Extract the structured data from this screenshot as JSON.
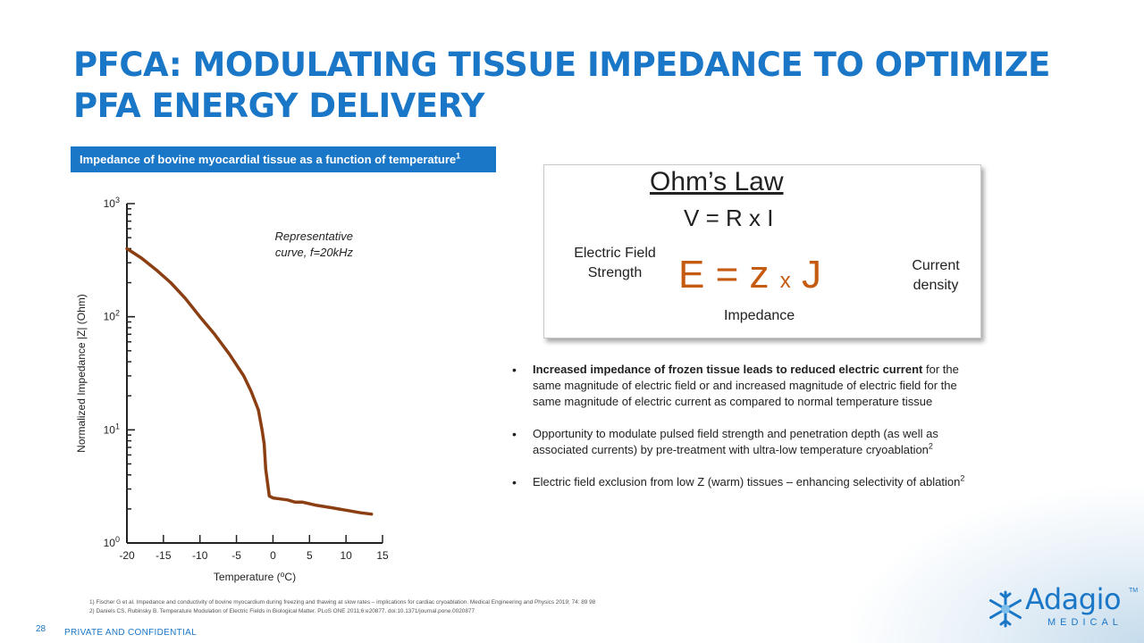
{
  "title": {
    "line1": "PFCA: MODULATING TISSUE IMPEDANCE TO OPTIMIZE",
    "line2": "PFA ENERGY DELIVERY"
  },
  "chart_banner": {
    "text": "Impedance of bovine myocardial tissue as a function of temperature",
    "ref": "1"
  },
  "chart_data": {
    "type": "line",
    "xlabel": "Temperature (⁰C)",
    "ylabel": "Normalized Impedance |Z| (Ohm)",
    "xlim": [
      -20,
      15
    ],
    "ylim": [
      1,
      1000
    ],
    "yscale": "log",
    "x_ticks": [
      "-20",
      "-15",
      "-10",
      "-5",
      "0",
      "5",
      "10",
      "15"
    ],
    "y_ticks": [
      {
        "base": "10",
        "exp": "0",
        "value": 1
      },
      {
        "base": "10",
        "exp": "1",
        "value": 10
      },
      {
        "base": "10",
        "exp": "2",
        "value": 100
      },
      {
        "base": "10",
        "exp": "3",
        "value": 1000
      }
    ],
    "annotation": [
      "Representative",
      "curve, f=20kHz"
    ],
    "color": "#8b3e12",
    "series": [
      {
        "x": [
          -20,
          -18,
          -16,
          -14,
          -12,
          -10,
          -8,
          -6,
          -4,
          -3,
          -2,
          -1.5,
          -1.2,
          -1.0,
          -0.5,
          0,
          1,
          2,
          3,
          4,
          6,
          8,
          10,
          12,
          13.5
        ],
        "y": [
          400,
          330,
          260,
          200,
          145,
          100,
          70,
          47,
          30,
          22,
          15,
          10,
          7.5,
          4.5,
          2.6,
          2.5,
          2.45,
          2.4,
          2.3,
          2.3,
          2.15,
          2.05,
          1.95,
          1.85,
          1.8
        ]
      }
    ]
  },
  "ohms_law": {
    "title": "Ohm’s Law",
    "formula": "V = R x I",
    "left_label": "Electric Field Strength",
    "equation_left": "E = z",
    "equation_x": "x",
    "equation_right": "J",
    "right_label": "Current density",
    "bottom_label": "Impedance"
  },
  "bullets": [
    {
      "bold": "Increased impedance of frozen tissue leads to reduced electric current",
      "text": " for the same magnitude of electric field or and increased magnitude of electric field for the same magnitude of electric current as compared to normal temperature tissue",
      "ref": ""
    },
    {
      "bold": "",
      "text": "Opportunity to modulate pulsed field strength and penetration depth (as well as associated currents) by pre-treatment with ultra-low temperature cryoablation",
      "ref": "2"
    },
    {
      "bold": "",
      "text": "Electric field exclusion from low Z (warm) tissues – enhancing selectivity of ablation",
      "ref": "2"
    }
  ],
  "references": [
    "1)    Fischer G et al. Impedance and conductivity of bovine myocardium during freezing and thawing at slow rates – implications for cardiac cryoablation. Medical Engineering and Physics 2019; 74: 89 98",
    "2)    Daniels CS, Rubinsky B. Temperature Modulation of Electric Fields in Biological Matter. PLoS ONE 2011;6:e20877. doi:10.1371/journal.pone.0020877"
  ],
  "footer": {
    "page_number": "28",
    "confidential": "PRIVATE AND CONFIDENTIAL"
  },
  "logo": {
    "word": "Adagio",
    "sub": "MEDICAL",
    "tm": "TM"
  },
  "colors": {
    "brand_blue": "#1a76c6",
    "equation_orange": "#c55a11",
    "curve_brown": "#8b3e12"
  }
}
